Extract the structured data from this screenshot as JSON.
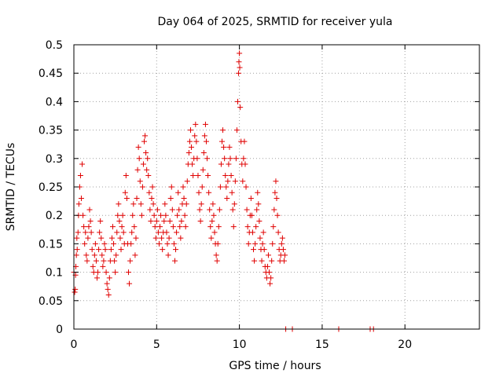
{
  "chart_data": {
    "type": "scatter",
    "title": "Day 064 of 2025, SRMTID for receiver yula",
    "xlabel": "GPS time / hours",
    "ylabel": "SRMTID / TECUs",
    "xlim": [
      0,
      24.5
    ],
    "ylim": [
      0,
      0.5
    ],
    "x_ticks": [
      0,
      5,
      10,
      15,
      20
    ],
    "x_tick_labels": [
      "0",
      "5",
      "10",
      "15",
      "20"
    ],
    "y_ticks": [
      0,
      0.05,
      0.1,
      0.15,
      0.2,
      0.25,
      0.3,
      0.35,
      0.4,
      0.45,
      0.5
    ],
    "y_tick_labels": [
      "0",
      "0.05",
      "0.1",
      "0.15",
      "0.2",
      "0.25",
      "0.3",
      "0.35",
      "0.4",
      "0.45",
      "0.5"
    ],
    "grid": true,
    "marker": "+",
    "color": "#e00000",
    "series": [
      {
        "name": "SRMTID",
        "points": [
          [
            0.0,
            0.1
          ],
          [
            0.05,
            0.065
          ],
          [
            0.08,
            0.07
          ],
          [
            0.1,
            0.095
          ],
          [
            0.12,
            0.11
          ],
          [
            0.15,
            0.13
          ],
          [
            0.18,
            0.16
          ],
          [
            0.2,
            0.14
          ],
          [
            0.25,
            0.17
          ],
          [
            0.28,
            0.2
          ],
          [
            0.3,
            0.22
          ],
          [
            0.35,
            0.25
          ],
          [
            0.4,
            0.27
          ],
          [
            0.45,
            0.23
          ],
          [
            0.5,
            0.29
          ],
          [
            0.55,
            0.2
          ],
          [
            0.6,
            0.18
          ],
          [
            0.65,
            0.15
          ],
          [
            0.7,
            0.17
          ],
          [
            0.75,
            0.13
          ],
          [
            0.8,
            0.12
          ],
          [
            0.85,
            0.16
          ],
          [
            0.9,
            0.18
          ],
          [
            0.95,
            0.21
          ],
          [
            1.0,
            0.19
          ],
          [
            1.05,
            0.17
          ],
          [
            1.1,
            0.14
          ],
          [
            1.15,
            0.11
          ],
          [
            1.2,
            0.1
          ],
          [
            1.25,
            0.13
          ],
          [
            1.3,
            0.15
          ],
          [
            1.35,
            0.12
          ],
          [
            1.4,
            0.09
          ],
          [
            1.45,
            0.1
          ],
          [
            1.5,
            0.14
          ],
          [
            1.55,
            0.17
          ],
          [
            1.6,
            0.19
          ],
          [
            1.65,
            0.16
          ],
          [
            1.7,
            0.13
          ],
          [
            1.75,
            0.11
          ],
          [
            1.8,
            0.12
          ],
          [
            1.85,
            0.15
          ],
          [
            1.9,
            0.14
          ],
          [
            1.95,
            0.1
          ],
          [
            2.0,
            0.08
          ],
          [
            2.05,
            0.07
          ],
          [
            2.1,
            0.06
          ],
          [
            2.15,
            0.09
          ],
          [
            2.2,
            0.12
          ],
          [
            2.25,
            0.14
          ],
          [
            2.3,
            0.16
          ],
          [
            2.35,
            0.18
          ],
          [
            2.4,
            0.15
          ],
          [
            2.45,
            0.12
          ],
          [
            2.5,
            0.1
          ],
          [
            2.55,
            0.13
          ],
          [
            2.6,
            0.17
          ],
          [
            2.65,
            0.2
          ],
          [
            2.7,
            0.22
          ],
          [
            2.75,
            0.19
          ],
          [
            2.8,
            0.16
          ],
          [
            2.85,
            0.14
          ],
          [
            2.9,
            0.18
          ],
          [
            2.95,
            0.2
          ],
          [
            3.0,
            0.17
          ],
          [
            3.05,
            0.15
          ],
          [
            3.1,
            0.24
          ],
          [
            3.15,
            0.27
          ],
          [
            3.2,
            0.23
          ],
          [
            3.25,
            0.15
          ],
          [
            3.3,
            0.1
          ],
          [
            3.35,
            0.08
          ],
          [
            3.4,
            0.12
          ],
          [
            3.45,
            0.15
          ],
          [
            3.5,
            0.17
          ],
          [
            3.55,
            0.2
          ],
          [
            3.6,
            0.22
          ],
          [
            3.65,
            0.18
          ],
          [
            3.7,
            0.13
          ],
          [
            3.75,
            0.16
          ],
          [
            3.8,
            0.23
          ],
          [
            3.85,
            0.28
          ],
          [
            3.9,
            0.32
          ],
          [
            3.95,
            0.3
          ],
          [
            4.0,
            0.26
          ],
          [
            4.05,
            0.22
          ],
          [
            4.1,
            0.2
          ],
          [
            4.15,
            0.25
          ],
          [
            4.2,
            0.29
          ],
          [
            4.25,
            0.33
          ],
          [
            4.3,
            0.34
          ],
          [
            4.35,
            0.31
          ],
          [
            4.4,
            0.28
          ],
          [
            4.45,
            0.3
          ],
          [
            4.5,
            0.27
          ],
          [
            4.55,
            0.24
          ],
          [
            4.6,
            0.21
          ],
          [
            4.65,
            0.19
          ],
          [
            4.7,
            0.23
          ],
          [
            4.75,
            0.25
          ],
          [
            4.8,
            0.22
          ],
          [
            4.85,
            0.2
          ],
          [
            4.9,
            0.18
          ],
          [
            4.95,
            0.16
          ],
          [
            5.0,
            0.19
          ],
          [
            5.05,
            0.21
          ],
          [
            5.1,
            0.17
          ],
          [
            5.15,
            0.15
          ],
          [
            5.2,
            0.18
          ],
          [
            5.25,
            0.2
          ],
          [
            5.3,
            0.16
          ],
          [
            5.35,
            0.14
          ],
          [
            5.4,
            0.17
          ],
          [
            5.45,
            0.19
          ],
          [
            5.5,
            0.22
          ],
          [
            5.55,
            0.2
          ],
          [
            5.6,
            0.17
          ],
          [
            5.65,
            0.15
          ],
          [
            5.7,
            0.13
          ],
          [
            5.75,
            0.16
          ],
          [
            5.8,
            0.19
          ],
          [
            5.85,
            0.23
          ],
          [
            5.9,
            0.25
          ],
          [
            5.95,
            0.21
          ],
          [
            6.0,
            0.18
          ],
          [
            6.05,
            0.15
          ],
          [
            6.1,
            0.12
          ],
          [
            6.15,
            0.14
          ],
          [
            6.2,
            0.17
          ],
          [
            6.25,
            0.2
          ],
          [
            6.3,
            0.24
          ],
          [
            6.35,
            0.21
          ],
          [
            6.4,
            0.18
          ],
          [
            6.45,
            0.16
          ],
          [
            6.5,
            0.19
          ],
          [
            6.55,
            0.22
          ],
          [
            6.6,
            0.25
          ],
          [
            6.65,
            0.23
          ],
          [
            6.7,
            0.2
          ],
          [
            6.75,
            0.18
          ],
          [
            6.8,
            0.22
          ],
          [
            6.85,
            0.26
          ],
          [
            6.9,
            0.29
          ],
          [
            6.95,
            0.31
          ],
          [
            7.0,
            0.33
          ],
          [
            7.05,
            0.35
          ],
          [
            7.1,
            0.32
          ],
          [
            7.15,
            0.29
          ],
          [
            7.2,
            0.27
          ],
          [
            7.25,
            0.3
          ],
          [
            7.3,
            0.34
          ],
          [
            7.35,
            0.36
          ],
          [
            7.4,
            0.33
          ],
          [
            7.45,
            0.3
          ],
          [
            7.5,
            0.27
          ],
          [
            7.55,
            0.24
          ],
          [
            7.6,
            0.21
          ],
          [
            7.65,
            0.19
          ],
          [
            7.7,
            0.22
          ],
          [
            7.75,
            0.25
          ],
          [
            7.8,
            0.28
          ],
          [
            7.85,
            0.31
          ],
          [
            7.9,
            0.34
          ],
          [
            7.95,
            0.36
          ],
          [
            8.0,
            0.33
          ],
          [
            8.05,
            0.3
          ],
          [
            8.1,
            0.27
          ],
          [
            8.15,
            0.24
          ],
          [
            8.2,
            0.21
          ],
          [
            8.25,
            0.18
          ],
          [
            8.3,
            0.16
          ],
          [
            8.35,
            0.19
          ],
          [
            8.4,
            0.22
          ],
          [
            8.45,
            0.2
          ],
          [
            8.5,
            0.17
          ],
          [
            8.55,
            0.15
          ],
          [
            8.6,
            0.13
          ],
          [
            8.65,
            0.12
          ],
          [
            8.7,
            0.15
          ],
          [
            8.75,
            0.18
          ],
          [
            8.8,
            0.21
          ],
          [
            8.85,
            0.25
          ],
          [
            8.9,
            0.29
          ],
          [
            8.95,
            0.33
          ],
          [
            9.0,
            0.35
          ],
          [
            9.05,
            0.32
          ],
          [
            9.1,
            0.3
          ],
          [
            9.15,
            0.27
          ],
          [
            9.2,
            0.25
          ],
          [
            9.25,
            0.23
          ],
          [
            9.3,
            0.26
          ],
          [
            9.35,
            0.29
          ],
          [
            9.4,
            0.32
          ],
          [
            9.45,
            0.3
          ],
          [
            9.5,
            0.27
          ],
          [
            9.55,
            0.24
          ],
          [
            9.6,
            0.21
          ],
          [
            9.65,
            0.18
          ],
          [
            9.7,
            0.22
          ],
          [
            9.75,
            0.26
          ],
          [
            9.8,
            0.3
          ],
          [
            9.85,
            0.35
          ],
          [
            9.9,
            0.4
          ],
          [
            9.95,
            0.45
          ],
          [
            9.97,
            0.47
          ],
          [
            10.0,
            0.485
          ],
          [
            10.02,
            0.46
          ],
          [
            10.05,
            0.39
          ],
          [
            10.1,
            0.33
          ],
          [
            10.15,
            0.29
          ],
          [
            10.2,
            0.26
          ],
          [
            10.25,
            0.3
          ],
          [
            10.3,
            0.33
          ],
          [
            10.35,
            0.29
          ],
          [
            10.4,
            0.25
          ],
          [
            10.45,
            0.21
          ],
          [
            10.5,
            0.18
          ],
          [
            10.55,
            0.15
          ],
          [
            10.6,
            0.17
          ],
          [
            10.65,
            0.2
          ],
          [
            10.7,
            0.23
          ],
          [
            10.75,
            0.2
          ],
          [
            10.8,
            0.17
          ],
          [
            10.85,
            0.14
          ],
          [
            10.9,
            0.12
          ],
          [
            10.95,
            0.15
          ],
          [
            11.0,
            0.18
          ],
          [
            11.05,
            0.21
          ],
          [
            11.1,
            0.24
          ],
          [
            11.15,
            0.22
          ],
          [
            11.2,
            0.19
          ],
          [
            11.25,
            0.16
          ],
          [
            11.3,
            0.14
          ],
          [
            11.35,
            0.12
          ],
          [
            11.4,
            0.15
          ],
          [
            11.45,
            0.17
          ],
          [
            11.5,
            0.14
          ],
          [
            11.55,
            0.11
          ],
          [
            11.6,
            0.1
          ],
          [
            11.65,
            0.09
          ],
          [
            11.7,
            0.11
          ],
          [
            11.75,
            0.13
          ],
          [
            11.8,
            0.1
          ],
          [
            11.85,
            0.08
          ],
          [
            11.9,
            0.09
          ],
          [
            11.95,
            0.12
          ],
          [
            12.0,
            0.15
          ],
          [
            12.05,
            0.18
          ],
          [
            12.1,
            0.21
          ],
          [
            12.15,
            0.24
          ],
          [
            12.2,
            0.26
          ],
          [
            12.25,
            0.23
          ],
          [
            12.3,
            0.2
          ],
          [
            12.35,
            0.17
          ],
          [
            12.4,
            0.14
          ],
          [
            12.45,
            0.12
          ],
          [
            12.5,
            0.13
          ],
          [
            12.55,
            0.15
          ],
          [
            12.6,
            0.16
          ],
          [
            12.65,
            0.14
          ],
          [
            12.7,
            0.12
          ],
          [
            12.75,
            0.13
          ],
          [
            12.8,
            0.0
          ],
          [
            13.2,
            0.0
          ],
          [
            16.0,
            0.0
          ],
          [
            17.9,
            0.0
          ],
          [
            18.1,
            0.0
          ]
        ]
      }
    ]
  }
}
